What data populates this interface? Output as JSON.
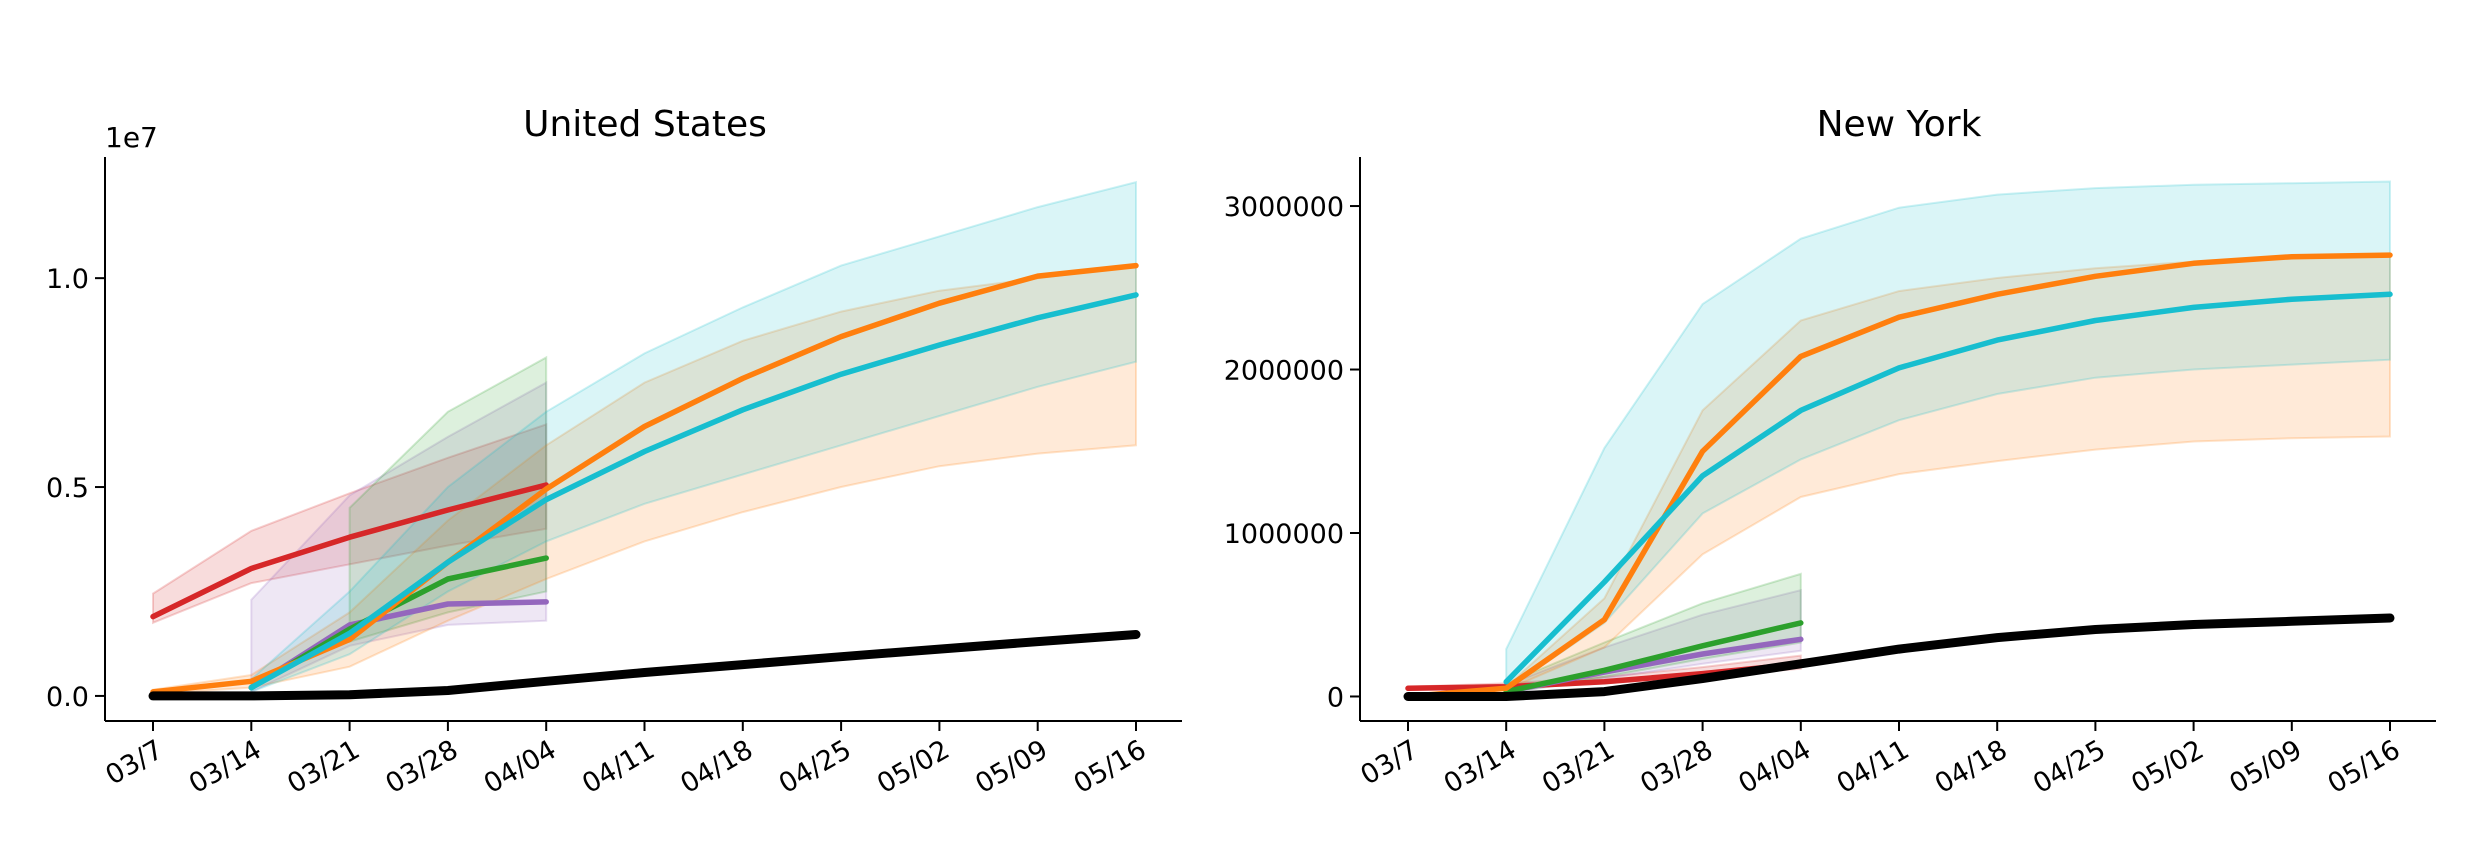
{
  "chart_data": [
    {
      "type": "line",
      "title": "United States",
      "xlabel": "",
      "ylabel": "",
      "offset_label": "1e7",
      "categories": [
        "03/7",
        "03/14",
        "03/21",
        "03/28",
        "04/04",
        "04/11",
        "04/18",
        "04/25",
        "05/02",
        "05/09",
        "05/16"
      ],
      "ylim": [
        -600000,
        12900000
      ],
      "yticks": [
        0,
        5000000,
        10000000
      ],
      "ytick_labels": [
        "0.0",
        "0.5",
        "1.0"
      ],
      "grid": false,
      "legend": "none",
      "series": [
        {
          "color": "#d62728",
          "values": [
            1900000,
            3050000,
            3800000,
            4450000,
            5050000,
            null,
            null,
            null,
            null,
            null,
            null
          ],
          "band_low": [
            1750000,
            2700000,
            3150000,
            3600000,
            4000000,
            null,
            null,
            null,
            null,
            null,
            null
          ],
          "band_high": [
            2450000,
            3950000,
            4850000,
            5700000,
            6500000,
            null,
            null,
            null,
            null,
            null,
            null
          ]
        },
        {
          "color": "#9467bd",
          "values": [
            null,
            200000,
            1700000,
            2200000,
            2250000,
            null,
            null,
            null,
            null,
            null,
            null
          ],
          "band_low": [
            null,
            100000,
            1200000,
            1700000,
            1800000,
            null,
            null,
            null,
            null,
            null,
            null
          ],
          "band_high": [
            null,
            2300000,
            4800000,
            6200000,
            7500000,
            null,
            null,
            null,
            null,
            null,
            null
          ]
        },
        {
          "color": "#2ca02c",
          "values": [
            null,
            200000,
            1600000,
            2800000,
            3300000,
            null,
            null,
            null,
            null,
            null,
            null
          ],
          "band_low": [
            null,
            null,
            1300000,
            2000000,
            2500000,
            null,
            null,
            null,
            null,
            null,
            null
          ],
          "band_high": [
            null,
            null,
            4500000,
            6800000,
            8100000,
            null,
            null,
            null,
            null,
            null,
            null
          ]
        },
        {
          "color": "#ff7f0e",
          "values": [
            100000,
            350000,
            1350000,
            3200000,
            4950000,
            6450000,
            7600000,
            8600000,
            9400000,
            10050000,
            10300000
          ],
          "band_low": [
            50000,
            200000,
            700000,
            1800000,
            2800000,
            3700000,
            4400000,
            5000000,
            5500000,
            5800000,
            6000000
          ],
          "band_high": [
            150000,
            500000,
            2000000,
            4200000,
            6000000,
            7500000,
            8500000,
            9200000,
            9700000,
            10000000,
            10300000
          ]
        },
        {
          "color": "#17becf",
          "values": [
            null,
            200000,
            1500000,
            3200000,
            4700000,
            5850000,
            6850000,
            7700000,
            8400000,
            9050000,
            9600000
          ],
          "band_low": [
            null,
            100000,
            1000000,
            2500000,
            3700000,
            4600000,
            5300000,
            6000000,
            6700000,
            7400000,
            8000000
          ],
          "band_high": [
            null,
            400000,
            2500000,
            5000000,
            6800000,
            8200000,
            9300000,
            10300000,
            11000000,
            11700000,
            12300000
          ]
        },
        {
          "color": "#000000",
          "values": [
            0,
            0,
            30000,
            130000,
            350000,
            560000,
            750000,
            940000,
            1120000,
            1300000,
            1470000
          ]
        }
      ]
    },
    {
      "type": "line",
      "title": "New York",
      "xlabel": "",
      "ylabel": "",
      "categories": [
        "03/7",
        "03/14",
        "03/21",
        "03/28",
        "04/04",
        "04/11",
        "04/18",
        "04/25",
        "05/02",
        "05/09",
        "05/16"
      ],
      "ylim": [
        -150000,
        3300000
      ],
      "yticks": [
        0,
        1000000,
        2000000,
        3000000
      ],
      "ytick_labels": [
        "0",
        "1000000",
        "2000000",
        "3000000"
      ],
      "grid": false,
      "legend": "none",
      "series": [
        {
          "color": "#d62728",
          "values": [
            50000,
            60000,
            90000,
            140000,
            200000,
            null,
            null,
            null,
            null,
            null,
            null
          ],
          "band_low": [
            40000,
            50000,
            80000,
            120000,
            170000,
            null,
            null,
            null,
            null,
            null,
            null
          ],
          "band_high": [
            60000,
            80000,
            120000,
            180000,
            250000,
            null,
            null,
            null,
            null,
            null,
            null
          ]
        },
        {
          "color": "#9467bd",
          "values": [
            null,
            30000,
            150000,
            260000,
            350000,
            null,
            null,
            null,
            null,
            null,
            null
          ],
          "band_low": [
            null,
            20000,
            110000,
            200000,
            280000,
            null,
            null,
            null,
            null,
            null,
            null
          ],
          "band_high": [
            null,
            70000,
            300000,
            500000,
            650000,
            null,
            null,
            null,
            null,
            null,
            null
          ]
        },
        {
          "color": "#2ca02c",
          "values": [
            null,
            30000,
            160000,
            310000,
            450000,
            null,
            null,
            null,
            null,
            null,
            null
          ],
          "band_low": [
            null,
            20000,
            120000,
            230000,
            330000,
            null,
            null,
            null,
            null,
            null,
            null
          ],
          "band_high": [
            null,
            80000,
            330000,
            570000,
            750000,
            null,
            null,
            null,
            null,
            null,
            null
          ]
        },
        {
          "color": "#ff7f0e",
          "values": [
            0,
            50000,
            470000,
            1500000,
            2080000,
            2320000,
            2460000,
            2570000,
            2650000,
            2690000,
            2700000
          ],
          "band_low": [
            0,
            40000,
            300000,
            870000,
            1220000,
            1360000,
            1440000,
            1510000,
            1560000,
            1580000,
            1590000
          ],
          "band_high": [
            0,
            60000,
            600000,
            1750000,
            2300000,
            2480000,
            2560000,
            2620000,
            2660000,
            2690000,
            2700000
          ]
        },
        {
          "color": "#17becf",
          "values": [
            null,
            90000,
            700000,
            1350000,
            1750000,
            2010000,
            2180000,
            2300000,
            2380000,
            2430000,
            2460000
          ],
          "band_low": [
            null,
            40000,
            450000,
            1120000,
            1450000,
            1690000,
            1850000,
            1950000,
            2000000,
            2030000,
            2060000
          ],
          "band_high": [
            null,
            290000,
            1520000,
            2400000,
            2800000,
            2990000,
            3070000,
            3110000,
            3130000,
            3140000,
            3150000
          ]
        },
        {
          "color": "#000000",
          "values": [
            0,
            0,
            30000,
            110000,
            200000,
            290000,
            360000,
            410000,
            440000,
            460000,
            480000
          ]
        }
      ]
    }
  ]
}
